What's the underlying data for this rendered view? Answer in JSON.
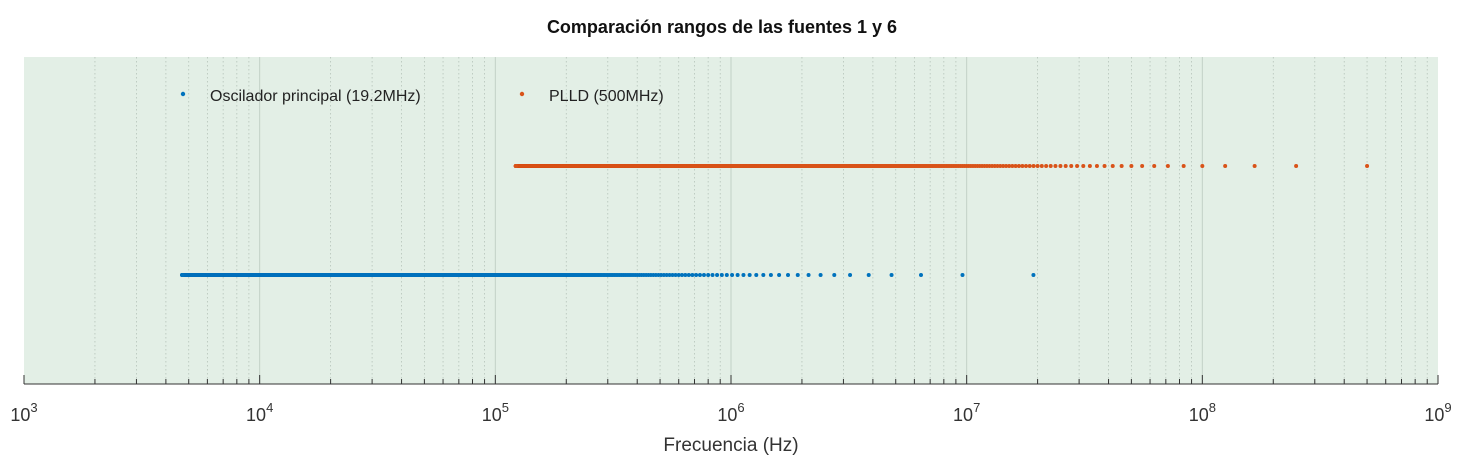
{
  "chart_data": {
    "type": "scatter",
    "title": "Comparación rangos de las fuentes 1 y 6",
    "xlabel": "Frecuencia (Hz)",
    "ylabel": "",
    "xscale": "log",
    "xlim": [
      1000,
      1000000000
    ],
    "ylim": [
      0,
      3
    ],
    "x_tick_labels": [
      {
        "base": "10",
        "exp": "3"
      },
      {
        "base": "10",
        "exp": "4"
      },
      {
        "base": "10",
        "exp": "5"
      },
      {
        "base": "10",
        "exp": "6"
      },
      {
        "base": "10",
        "exp": "7"
      },
      {
        "base": "10",
        "exp": "8"
      },
      {
        "base": "10",
        "exp": "9"
      }
    ],
    "y_ticks": "none",
    "grid": {
      "x_major": true,
      "x_minor": true,
      "y": false
    },
    "legend": {
      "placement": "top-left",
      "orientation": "horizontal"
    },
    "background": "#e3efe6",
    "series": [
      {
        "name": "Oscilador principal (19.2MHz)",
        "color": "#0072bd",
        "y": 1,
        "x_rule": "19200000 / n",
        "n_range": [
          1,
          4096
        ]
      },
      {
        "name": "PLLD (500MHz)",
        "color": "#d95319",
        "y": 2,
        "x_rule": "500000000 / n",
        "n_range": [
          1,
          4096
        ]
      }
    ]
  }
}
